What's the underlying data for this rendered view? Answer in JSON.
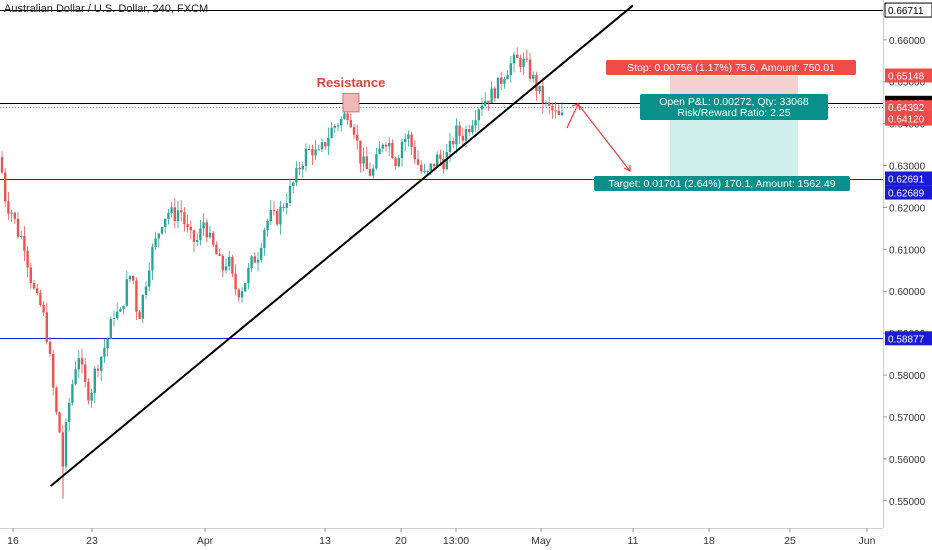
{
  "chart_title": "Australian Dollar / U.S. Dollar, 240, FXCM",
  "colors": {
    "up": "#26a69a",
    "down": "#ef5350",
    "resistance_label": "#e0443e",
    "level_line": "#1b1bd6",
    "trendline": "#000000",
    "stop_box": "#f3d1d1",
    "target_box": "#cfeeec",
    "stop_badge": "#f04a4a",
    "target_badge": "#07918a"
  },
  "chart_data": {
    "type": "candlestick",
    "title": "Australian Dollar / U.S. Dollar, 240, FXCM",
    "x_axis": {
      "ticks": [
        "16",
        "23",
        "Apr",
        "13",
        "20",
        "13:00",
        "May",
        "11",
        "18",
        "25",
        "Jun"
      ]
    },
    "y_axis": {
      "range": [
        0.5435,
        0.6695
      ],
      "ticks": [
        "0.66000",
        "0.65000",
        "0.64000",
        "0.63000",
        "0.62000",
        "0.61000",
        "0.60000",
        "0.59000",
        "0.58000",
        "0.57000",
        "0.56000",
        "0.55000"
      ]
    },
    "grid": false,
    "price_path": [
      [
        0,
        0.632
      ],
      [
        6,
        0.621
      ],
      [
        12,
        0.619
      ],
      [
        18,
        0.614
      ],
      [
        24,
        0.612
      ],
      [
        30,
        0.604
      ],
      [
        36,
        0.598
      ],
      [
        42,
        0.596
      ],
      [
        48,
        0.588
      ],
      [
        52,
        0.579
      ],
      [
        56,
        0.571
      ],
      [
        60,
        0.566
      ],
      [
        63,
        0.558
      ],
      [
        66,
        0.567
      ],
      [
        70,
        0.575
      ],
      [
        74,
        0.58
      ],
      [
        78,
        0.586
      ],
      [
        84,
        0.578
      ],
      [
        90,
        0.575
      ],
      [
        96,
        0.582
      ],
      [
        102,
        0.585
      ],
      [
        108,
        0.589
      ],
      [
        114,
        0.595
      ],
      [
        120,
        0.594
      ],
      [
        126,
        0.601
      ],
      [
        132,
        0.605
      ],
      [
        138,
        0.593
      ],
      [
        144,
        0.6
      ],
      [
        150,
        0.608
      ],
      [
        156,
        0.612
      ],
      [
        162,
        0.617
      ],
      [
        168,
        0.619
      ],
      [
        174,
        0.618
      ],
      [
        180,
        0.62
      ],
      [
        186,
        0.615
      ],
      [
        192,
        0.612
      ],
      [
        198,
        0.612
      ],
      [
        204,
        0.617
      ],
      [
        210,
        0.612
      ],
      [
        216,
        0.609
      ],
      [
        222,
        0.605
      ],
      [
        228,
        0.608
      ],
      [
        234,
        0.601
      ],
      [
        240,
        0.6
      ],
      [
        246,
        0.603
      ],
      [
        252,
        0.607
      ],
      [
        258,
        0.609
      ],
      [
        264,
        0.615
      ],
      [
        270,
        0.618
      ],
      [
        276,
        0.617
      ],
      [
        282,
        0.62
      ],
      [
        288,
        0.623
      ],
      [
        294,
        0.626
      ],
      [
        300,
        0.63
      ],
      [
        306,
        0.633
      ],
      [
        312,
        0.634
      ],
      [
        318,
        0.632
      ],
      [
        324,
        0.635
      ],
      [
        330,
        0.638
      ],
      [
        336,
        0.64
      ],
      [
        342,
        0.641
      ],
      [
        348,
        0.643
      ],
      [
        354,
        0.639
      ],
      [
        360,
        0.632
      ],
      [
        366,
        0.629
      ],
      [
        372,
        0.628
      ],
      [
        378,
        0.632
      ],
      [
        384,
        0.637
      ],
      [
        390,
        0.635
      ],
      [
        396,
        0.631
      ],
      [
        402,
        0.636
      ],
      [
        408,
        0.637
      ],
      [
        414,
        0.633
      ],
      [
        420,
        0.629
      ],
      [
        426,
        0.627
      ],
      [
        432,
        0.63
      ],
      [
        438,
        0.632
      ],
      [
        444,
        0.631
      ],
      [
        450,
        0.634
      ],
      [
        456,
        0.638
      ],
      [
        462,
        0.637
      ],
      [
        468,
        0.639
      ],
      [
        474,
        0.642
      ],
      [
        480,
        0.645
      ],
      [
        486,
        0.646
      ],
      [
        492,
        0.647
      ],
      [
        498,
        0.649
      ],
      [
        504,
        0.652
      ],
      [
        510,
        0.654
      ],
      [
        516,
        0.655
      ],
      [
        522,
        0.655
      ],
      [
        528,
        0.653
      ],
      [
        534,
        0.65
      ],
      [
        540,
        0.647
      ],
      [
        546,
        0.644
      ],
      [
        552,
        0.643
      ],
      [
        556,
        0.642
      ],
      [
        560,
        0.641
      ],
      [
        564,
        0.642
      ]
    ],
    "levels": [
      {
        "price": 0.6671,
        "label": "0.66711"
      },
      {
        "price": 0.64497,
        "label": "0.64497"
      },
      {
        "price": 0.6269,
        "label": "0.62691"
      },
      {
        "price": 0.58877,
        "label": "0.58877"
      }
    ],
    "price_badges": [
      {
        "label": "0.66711",
        "price": 0.6671,
        "fill": "#000000",
        "text": "#ffffff",
        "outline": true
      },
      {
        "label": "0.65148",
        "price": 0.65148,
        "fill": "#f04a4a",
        "text": "#ffffff"
      },
      {
        "label": "0.64497",
        "price": 0.64497,
        "fill": "#000000",
        "text": "#ffffff"
      },
      {
        "label": "0.64392",
        "price": 0.64392,
        "fill": "#ef5350",
        "text": "#ffffff"
      },
      {
        "label": "0.64120",
        "price": 0.6412,
        "fill": "#f04a4a",
        "text": "#ffffff"
      },
      {
        "label": "0.62691",
        "price": 0.62691,
        "fill": "#1b1bd6",
        "text": "#ffffff"
      },
      {
        "label": "0.62689",
        "price": 0.62689,
        "fill": "#1b1bd6",
        "text": "#ffffff",
        "offset": 14
      },
      {
        "label": "0.58877",
        "price": 0.58877,
        "fill": "#1b1bd6",
        "text": "#ffffff"
      }
    ],
    "trendline": {
      "from": [
        0.5,
        0.5535
      ],
      "to": [
        633,
        0.6682
      ]
    },
    "annotations": {
      "resistance": "Resistance",
      "stop": "Stop: 0.00756 (1.17%) 75.6, Amount: 750.01",
      "pnl": "Open P&L: 0.00272, Qty: 33068",
      "rr": "Risk/Reward Ratio: 2.25",
      "target": "Target: 0.01701 (2.64%) 170.1, Amount: 1562.49"
    }
  }
}
